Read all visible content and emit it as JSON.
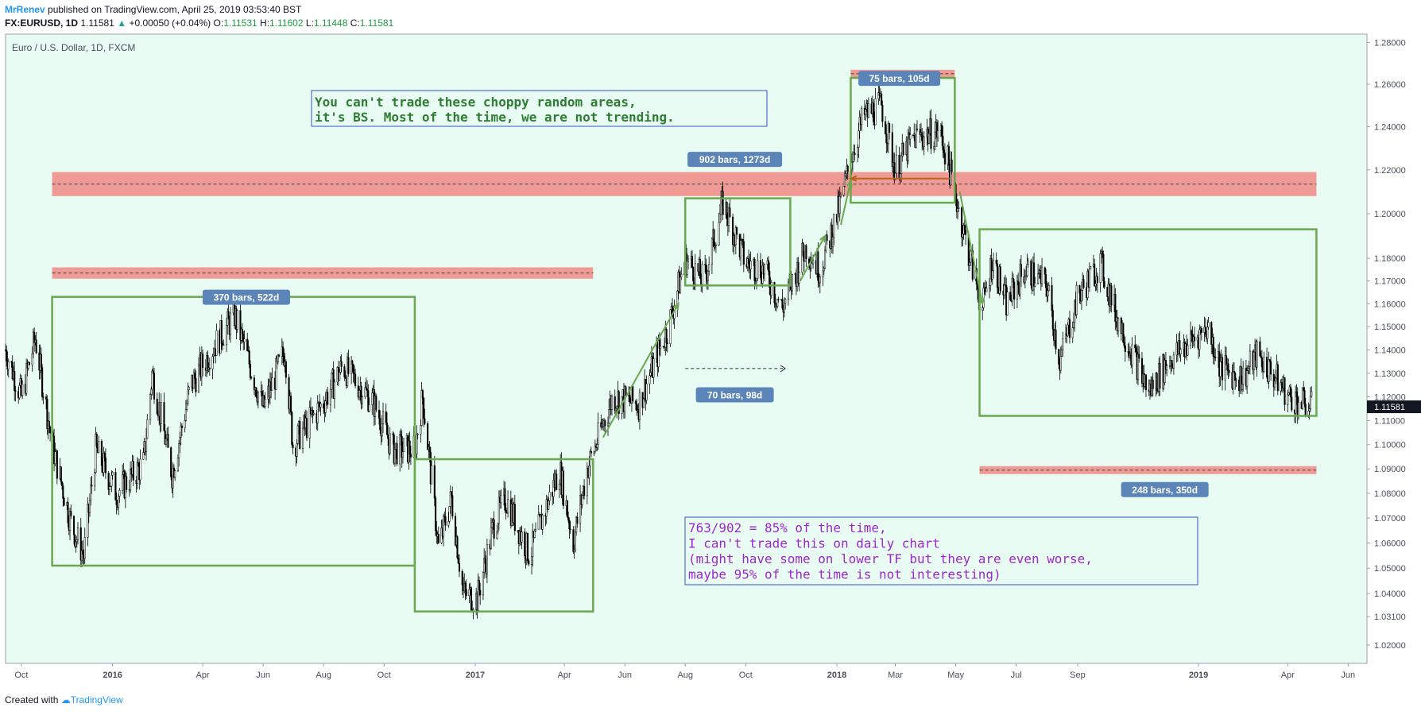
{
  "header": {
    "author": "MrRenev",
    "published_text": "published on TradingView.com, April 25, 2019 03:53:40 BST",
    "symbol": "FX:EURUSD, 1D",
    "last_price": "1.11581",
    "change_arrow": "▲",
    "change": "+0.00050 (+0.04%)",
    "open_label": "O:",
    "open": "1.11531",
    "high_label": "H:",
    "high": "1.11602",
    "low_label": "L:",
    "low": "1.11448",
    "close_label": "C:",
    "close": "1.11581"
  },
  "footer": {
    "created_with": "Created with",
    "brand": "TradingView"
  },
  "colors": {
    "background": "#e9fcf4",
    "band": "#ef8f8a",
    "box": "#6aa84f",
    "label_bg": "#5b85b8",
    "note_green": "#2e7d32",
    "note_purple": "#9c27d0",
    "note_border": "#3354c4",
    "price_tag": "#131722"
  },
  "chart_data": {
    "type": "candlestick",
    "title": "Euro / U.S. Dollar, 1D, FXCM",
    "ylim": [
      1.013,
      1.284
    ],
    "y_scale": "log",
    "price_axis_ticks": [
      "1.02000",
      "1.03100",
      "1.04000",
      "1.05000",
      "1.06000",
      "1.07000",
      "1.08000",
      "1.09000",
      "1.10000",
      "1.11000",
      "1.12000",
      "1.13000",
      "1.14000",
      "1.15000",
      "1.16000",
      "1.17000",
      "1.18000",
      "1.20000",
      "1.22000",
      "1.24000",
      "1.26000",
      "1.28000"
    ],
    "last_price_tag": "1.11581",
    "time_axis": [
      "Oct",
      "2016",
      "Apr",
      "Jun",
      "Aug",
      "Oct",
      "2017",
      "Apr",
      "Jun",
      "Aug",
      "Oct",
      "2018",
      "Mar",
      "May",
      "Jul",
      "Sep",
      "2019",
      "Apr",
      "Jun"
    ],
    "time_axis_bold": [
      "2016",
      "2017",
      "2018",
      "2019"
    ],
    "price_path": [
      [
        "2015-09-15",
        1.14
      ],
      [
        "2015-10-01",
        1.12
      ],
      [
        "2015-10-15",
        1.145
      ],
      [
        "2015-11-01",
        1.1
      ],
      [
        "2015-11-20",
        1.068
      ],
      [
        "2015-12-03",
        1.055
      ],
      [
        "2015-12-15",
        1.098
      ],
      [
        "2016-01-05",
        1.08
      ],
      [
        "2016-02-01",
        1.092
      ],
      [
        "2016-02-10",
        1.13
      ],
      [
        "2016-03-01",
        1.088
      ],
      [
        "2016-03-20",
        1.125
      ],
      [
        "2016-04-10",
        1.14
      ],
      [
        "2016-05-03",
        1.155
      ],
      [
        "2016-06-01",
        1.115
      ],
      [
        "2016-06-23",
        1.14
      ],
      [
        "2016-07-01",
        1.1
      ],
      [
        "2016-08-01",
        1.118
      ],
      [
        "2016-08-20",
        1.133
      ],
      [
        "2016-09-20",
        1.118
      ],
      [
        "2016-10-10",
        1.098
      ],
      [
        "2016-11-01",
        1.098
      ],
      [
        "2016-11-09",
        1.12
      ],
      [
        "2016-11-25",
        1.058
      ],
      [
        "2016-12-08",
        1.078
      ],
      [
        "2016-12-20",
        1.04
      ],
      [
        "2017-01-03",
        1.038
      ],
      [
        "2017-01-20",
        1.068
      ],
      [
        "2017-02-01",
        1.078
      ],
      [
        "2017-02-25",
        1.055
      ],
      [
        "2017-03-27",
        1.09
      ],
      [
        "2017-04-10",
        1.06
      ],
      [
        "2017-04-24",
        1.09
      ],
      [
        "2017-05-20",
        1.12
      ],
      [
        "2017-06-15",
        1.117
      ],
      [
        "2017-07-15",
        1.15
      ],
      [
        "2017-08-01",
        1.18
      ],
      [
        "2017-08-20",
        1.17
      ],
      [
        "2017-09-08",
        1.205
      ],
      [
        "2017-10-01",
        1.178
      ],
      [
        "2017-10-20",
        1.175
      ],
      [
        "2017-11-07",
        1.158
      ],
      [
        "2017-12-01",
        1.185
      ],
      [
        "2017-12-15",
        1.175
      ],
      [
        "2018-01-05",
        1.205
      ],
      [
        "2018-01-15",
        1.225
      ],
      [
        "2018-01-28",
        1.245
      ],
      [
        "2018-02-15",
        1.25
      ],
      [
        "2018-03-01",
        1.22
      ],
      [
        "2018-03-20",
        1.235
      ],
      [
        "2018-04-15",
        1.238
      ],
      [
        "2018-04-25",
        1.22
      ],
      [
        "2018-05-10",
        1.19
      ],
      [
        "2018-05-28",
        1.158
      ],
      [
        "2018-06-07",
        1.18
      ],
      [
        "2018-06-21",
        1.16
      ],
      [
        "2018-07-10",
        1.175
      ],
      [
        "2018-08-01",
        1.168
      ],
      [
        "2018-08-14",
        1.135
      ],
      [
        "2018-09-01",
        1.163
      ],
      [
        "2018-09-24",
        1.178
      ],
      [
        "2018-10-10",
        1.155
      ],
      [
        "2018-11-01",
        1.133
      ],
      [
        "2018-11-12",
        1.122
      ],
      [
        "2018-12-01",
        1.135
      ],
      [
        "2019-01-10",
        1.15
      ],
      [
        "2019-01-24",
        1.132
      ],
      [
        "2019-02-15",
        1.128
      ],
      [
        "2019-03-01",
        1.138
      ],
      [
        "2019-03-25",
        1.125
      ],
      [
        "2019-04-02",
        1.12
      ],
      [
        "2019-04-25",
        1.1158
      ]
    ],
    "bands": [
      {
        "from": "2015-11-01",
        "to": "2019-04-30",
        "low": 1.208,
        "high": 1.219
      },
      {
        "from": "2015-11-01",
        "to": "2017-04-30",
        "low": 1.171,
        "high": 1.176
      },
      {
        "from": "2018-01-15",
        "to": "2018-04-30",
        "low": 1.264,
        "high": 1.266
      },
      {
        "from": "2018-05-25",
        "to": "2019-04-30",
        "low": 1.089,
        "high": 1.09
      }
    ],
    "boxes": [
      {
        "from": "2015-11-01",
        "to": "2016-11-01",
        "low": 1.051,
        "high": 1.163,
        "label": "370 bars, 522d",
        "label_at": "2016-05-15",
        "label_side": "top"
      },
      {
        "from": "2016-11-01",
        "to": "2017-04-30",
        "low": 1.033,
        "high": 1.094,
        "label": "",
        "label_side": "none"
      },
      {
        "from": "2017-08-01",
        "to": "2017-11-15",
        "low": 1.168,
        "high": 1.207,
        "label": "",
        "label_side": "none"
      },
      {
        "from": "2018-01-15",
        "to": "2018-04-30",
        "low": 1.205,
        "high": 1.263,
        "label": "75 bars, 105d",
        "label_at": "2018-03-05",
        "label_side": "top"
      },
      {
        "from": "2018-05-25",
        "to": "2019-04-30",
        "low": 1.112,
        "high": 1.193,
        "label": "248 bars, 350d",
        "label_at": "2018-11-28",
        "label_side": "below-band"
      }
    ],
    "range_labels": [
      {
        "text": "902 bars, 1273d",
        "at": "2017-09-20",
        "price": 1.225
      },
      {
        "text": "70 bars, 98d",
        "at": "2017-09-20",
        "price": 1.121
      }
    ],
    "measure_arrow": {
      "from": "2017-08-01",
      "to": "2017-11-10",
      "price": 1.132
    },
    "notes": [
      {
        "id": "note1",
        "lines": [
          "You can't trade these choppy random areas,",
          "it's BS. Most of the time, we are not trending."
        ]
      },
      {
        "id": "note2",
        "lines": [
          "763/902 = 85% of the time,",
          "I can't trade this on daily chart",
          "(might have some on lower TF but they are even worse,",
          "maybe 95% of the time is not interesting)"
        ]
      }
    ]
  }
}
